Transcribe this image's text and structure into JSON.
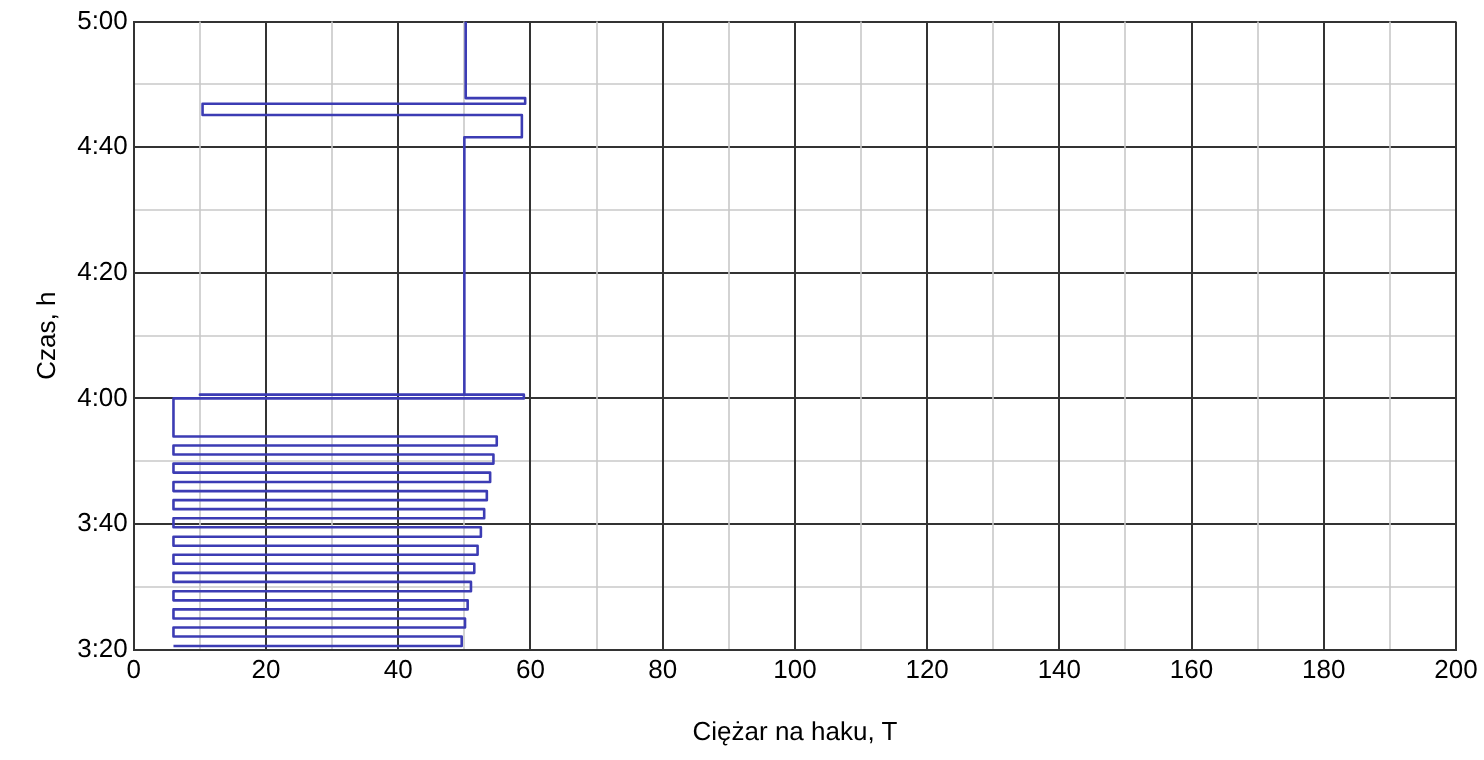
{
  "chart_data": {
    "type": "line",
    "xlabel": "Ciężar na haku, T",
    "ylabel": "Czas, h",
    "xlim": [
      0,
      200
    ],
    "xticks": [
      0,
      {
        "value": 10,
        "label": null
      },
      20,
      {
        "value": 30,
        "label": null
      },
      40,
      {
        "value": 50,
        "label": null
      },
      60,
      {
        "value": 70,
        "label": null
      },
      80,
      {
        "value": 90,
        "label": null
      },
      100,
      {
        "value": 110,
        "label": null
      },
      120,
      {
        "value": 130,
        "label": null
      },
      140,
      {
        "value": 150,
        "label": null
      },
      160,
      {
        "value": 170,
        "label": null
      },
      180,
      {
        "value": 190,
        "label": null
      },
      200
    ],
    "ylim": [
      3.3333,
      5
    ],
    "yticks": [
      {
        "value": 3.3333,
        "label": "3:20"
      },
      {
        "value": 3.5,
        "label": null
      },
      {
        "value": 3.6667,
        "label": "3:40"
      },
      {
        "value": 3.8333,
        "label": null
      },
      {
        "value": 4,
        "label": "4:00"
      },
      {
        "value": 4.1667,
        "label": null
      },
      {
        "value": 4.3333,
        "label": "4:20"
      },
      {
        "value": 4.5,
        "label": null
      },
      {
        "value": 4.6667,
        "label": "4:40"
      },
      {
        "value": 4.8333,
        "label": null
      },
      {
        "value": 5,
        "label": "5:00"
      }
    ],
    "grid": true,
    "legend": false,
    "marker": "none",
    "line_style": "solid",
    "series": [
      {
        "color": "#3c3cb4",
        "x": [
          6,
          49.6,
          49.6,
          6,
          6,
          50.1,
          50.1,
          6,
          6,
          50.5,
          50.5,
          6,
          6,
          51,
          51,
          6,
          6,
          51.5,
          51.5,
          6,
          6,
          52,
          52,
          6,
          6,
          52.5,
          52.5,
          6,
          6,
          53,
          53,
          6,
          6,
          53.4,
          53.4,
          6,
          6,
          53.9,
          53.9,
          6,
          6,
          54.4,
          54.4,
          6,
          6,
          54.9,
          54.9,
          6,
          6,
          59,
          59,
          10,
          50,
          50,
          58.7,
          58.7,
          10.4,
          10.4,
          59.2,
          59.2,
          50.2,
          50.2
        ],
        "values": [
          3.343,
          3.343,
          3.368,
          3.368,
          3.392,
          3.392,
          3.416,
          3.416,
          3.44,
          3.44,
          3.464,
          3.464,
          3.488,
          3.488,
          3.513,
          3.513,
          3.537,
          3.537,
          3.561,
          3.561,
          3.585,
          3.585,
          3.609,
          3.609,
          3.633,
          3.633,
          3.658,
          3.658,
          3.682,
          3.682,
          3.706,
          3.706,
          3.73,
          3.73,
          3.754,
          3.754,
          3.778,
          3.778,
          3.803,
          3.803,
          3.827,
          3.827,
          3.851,
          3.851,
          3.875,
          3.875,
          3.899,
          3.899,
          4,
          4,
          4.01,
          4.01,
          4.01,
          4.693,
          4.693,
          4.752,
          4.752,
          4.782,
          4.782,
          4.797,
          4.797,
          5
        ]
      }
    ]
  }
}
